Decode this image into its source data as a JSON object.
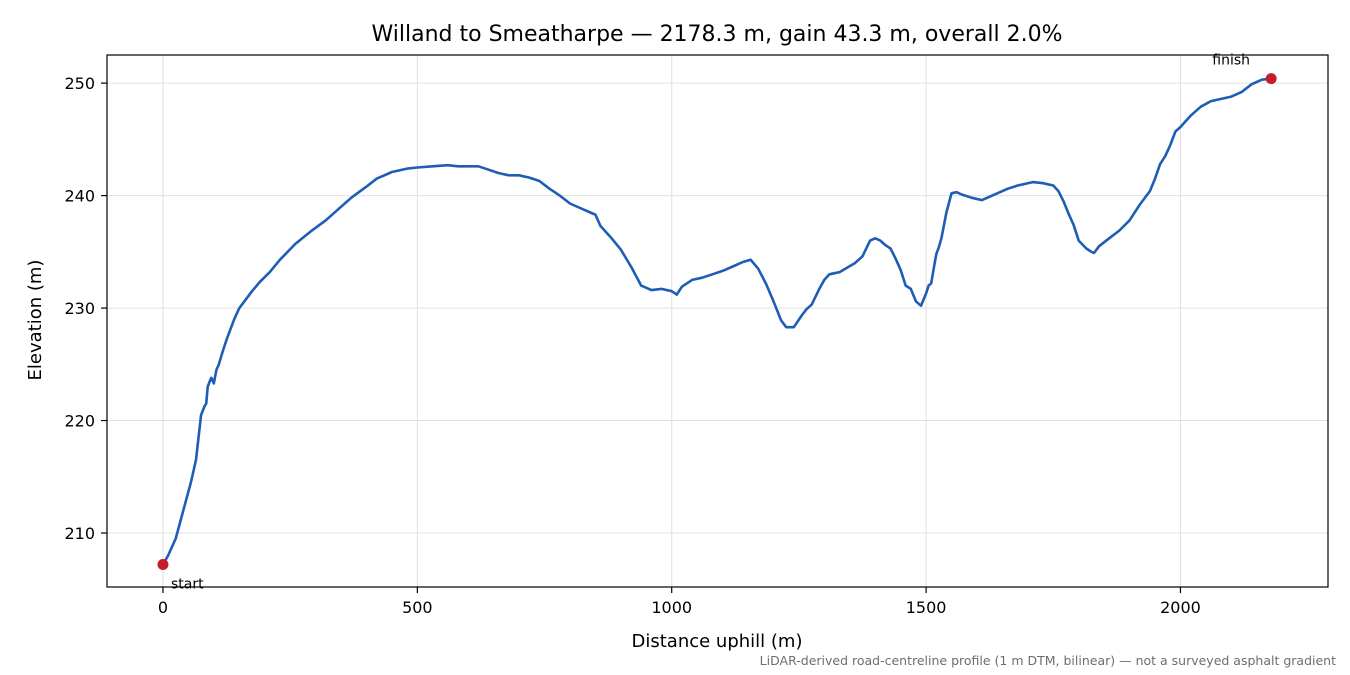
{
  "chart_data": {
    "type": "line",
    "title": "Willand to Smeatharpe — 2178.3 m, gain 43.3 m, overall 2.0%",
    "xlabel": "Distance uphill (m)",
    "ylabel": "Elevation (m)",
    "xlim": [
      -110,
      2290
    ],
    "ylim": [
      205.2,
      252.5
    ],
    "xticks": [
      0,
      500,
      1000,
      1500,
      2000
    ],
    "yticks": [
      210,
      220,
      230,
      240,
      250
    ],
    "grid": true,
    "series": [
      {
        "color": "#1f5db5",
        "x": [
          0,
          10,
          25,
          40,
          55,
          65,
          75,
          82,
          85,
          88,
          92,
          95,
          100,
          105,
          110,
          115,
          120,
          125,
          130,
          140,
          150,
          160,
          175,
          190,
          210,
          230,
          260,
          290,
          320,
          350,
          370,
          385,
          400,
          420,
          450,
          480,
          500,
          530,
          560,
          580,
          600,
          620,
          640,
          660,
          680,
          700,
          720,
          740,
          760,
          780,
          800,
          820,
          840,
          850,
          860,
          880,
          900,
          920,
          940,
          960,
          980,
          1000,
          1010,
          1020,
          1040,
          1060,
          1080,
          1100,
          1120,
          1140,
          1155,
          1170,
          1185,
          1200,
          1215,
          1225,
          1240,
          1255,
          1265,
          1275,
          1290,
          1300,
          1310,
          1320,
          1330,
          1345,
          1360,
          1375,
          1390,
          1400,
          1410,
          1420,
          1430,
          1440,
          1450,
          1460,
          1470,
          1480,
          1490,
          1500,
          1505,
          1510,
          1515,
          1520,
          1525,
          1530,
          1540,
          1550,
          1560,
          1570,
          1590,
          1610,
          1630,
          1660,
          1680,
          1710,
          1730,
          1750,
          1760,
          1770,
          1780,
          1790,
          1800,
          1815,
          1825,
          1830,
          1840,
          1860,
          1880,
          1900,
          1920,
          1940,
          1950,
          1960,
          1970,
          1980,
          1990,
          2000,
          2010,
          2020,
          2040,
          2060,
          2080,
          2100,
          2120,
          2140,
          2160,
          2178.3
        ],
        "y": [
          207.2,
          208.0,
          209.5,
          212.0,
          214.5,
          216.5,
          220.5,
          221.3,
          221.5,
          223.0,
          223.5,
          223.8,
          223.3,
          224.5,
          225.0,
          225.8,
          226.5,
          227.2,
          227.8,
          229.0,
          230.0,
          230.6,
          231.5,
          232.3,
          233.2,
          234.3,
          235.7,
          236.8,
          237.8,
          239.0,
          239.8,
          240.3,
          240.8,
          241.5,
          242.1,
          242.4,
          242.5,
          242.6,
          242.7,
          242.6,
          242.6,
          242.6,
          242.3,
          242.0,
          241.8,
          241.8,
          241.6,
          241.3,
          240.6,
          240.0,
          239.3,
          238.9,
          238.5,
          238.3,
          237.3,
          236.3,
          235.2,
          233.7,
          232.0,
          231.6,
          231.7,
          231.5,
          231.2,
          231.9,
          232.5,
          232.7,
          233.0,
          233.3,
          233.7,
          234.1,
          234.3,
          233.5,
          232.2,
          230.6,
          228.9,
          228.3,
          228.3,
          229.3,
          229.9,
          230.3,
          231.7,
          232.5,
          233.0,
          233.1,
          233.2,
          233.6,
          234.0,
          234.6,
          236.0,
          236.2,
          236.0,
          235.6,
          235.3,
          234.4,
          233.4,
          232.0,
          231.7,
          230.6,
          230.2,
          231.3,
          232.0,
          232.2,
          233.5,
          234.8,
          235.4,
          236.2,
          238.5,
          240.2,
          240.3,
          240.1,
          239.8,
          239.6,
          240.0,
          240.6,
          240.9,
          241.2,
          241.1,
          240.9,
          240.4,
          239.5,
          238.4,
          237.4,
          236.0,
          235.3,
          235.0,
          234.9,
          235.5,
          236.2,
          236.9,
          237.8,
          239.2,
          240.4,
          241.5,
          242.8,
          243.5,
          244.5,
          245.7,
          246.1,
          246.6,
          247.1,
          247.9,
          248.4,
          248.6,
          248.8,
          249.2,
          249.9,
          250.3,
          250.4
        ]
      }
    ],
    "annotations": [
      {
        "text": "start",
        "x": 0,
        "y": 207.2
      },
      {
        "text": "finish",
        "x": 2178.3,
        "y": 250.4
      }
    ],
    "footnote": "LiDAR-derived road-centreline profile (1 m DTM, bilinear) — not a surveyed asphalt gradient"
  }
}
